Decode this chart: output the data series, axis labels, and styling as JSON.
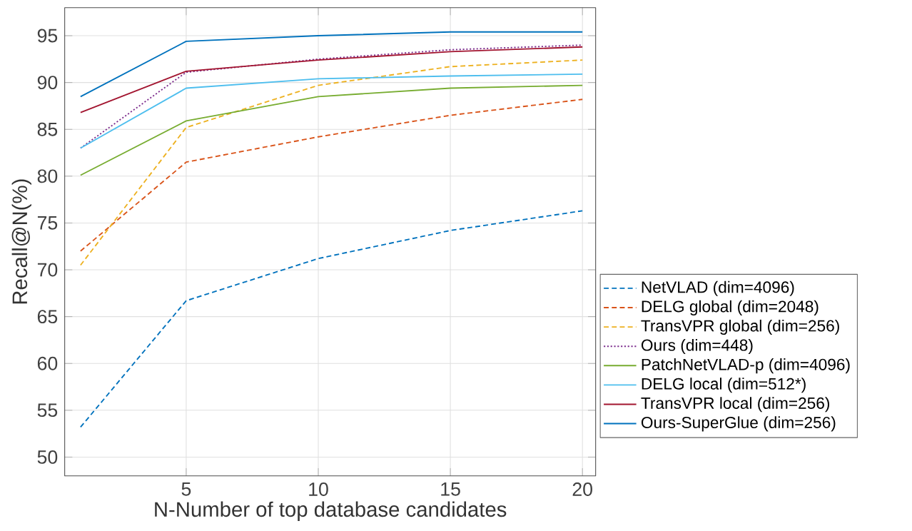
{
  "chart_data": {
    "type": "line",
    "xlabel": "N-Number of top database candidates",
    "ylabel": "Recall@N(%)",
    "x": [
      1,
      5,
      10,
      15,
      20
    ],
    "series": [
      {
        "name": "NetVLAD (dim=4096)",
        "color": "#0072bd",
        "line_style": "dashed",
        "values": [
          53.2,
          66.7,
          71.2,
          74.2,
          76.3
        ]
      },
      {
        "name": "DELG global (dim=2048)",
        "color": "#d95319",
        "line_style": "dashed",
        "values": [
          72.0,
          81.5,
          84.2,
          86.5,
          88.2
        ]
      },
      {
        "name": "TransVPR global (dim=256)",
        "color": "#edb120",
        "line_style": "dashed",
        "values": [
          70.5,
          85.2,
          89.7,
          91.7,
          92.4
        ]
      },
      {
        "name": "Ours (dim=448)",
        "color": "#7e2f8e",
        "line_style": "dotted",
        "values": [
          83.0,
          91.1,
          92.5,
          93.5,
          94.0
        ]
      },
      {
        "name": "PatchNetVLAD-p (dim=4096)",
        "color": "#77ac30",
        "line_style": "solid",
        "values": [
          80.1,
          85.9,
          88.5,
          89.4,
          89.7
        ]
      },
      {
        "name": "DELG local (dim=512*)",
        "color": "#4dbeee",
        "line_style": "solid",
        "values": [
          83.0,
          89.4,
          90.4,
          90.7,
          90.9
        ]
      },
      {
        "name": "TransVPR local (dim=256)",
        "color": "#a2142f",
        "line_style": "solid",
        "values": [
          86.8,
          91.2,
          92.4,
          93.3,
          93.8
        ]
      },
      {
        "name": "Ours-SuperGlue (dim=256)",
        "color": "#0072bd",
        "line_style": "solid",
        "values": [
          88.5,
          94.4,
          95.0,
          95.4,
          95.4
        ]
      }
    ],
    "xlim": [
      0.4,
      20.5
    ],
    "ylim": [
      48,
      98
    ],
    "xticks": [
      5,
      10,
      15,
      20
    ],
    "yticks": [
      50,
      55,
      60,
      65,
      70,
      75,
      80,
      85,
      90,
      95
    ],
    "grid": true,
    "legend": "right",
    "marker": "none"
  }
}
